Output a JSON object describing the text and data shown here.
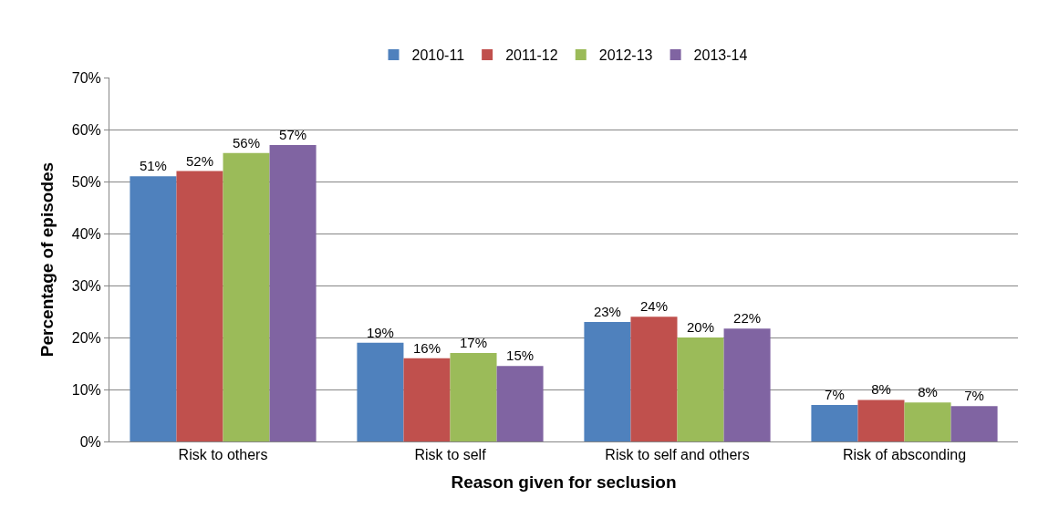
{
  "chart_data": {
    "type": "bar",
    "xlabel": "Reason given for seclusion",
    "ylabel": "Percentage of episodes",
    "categories": [
      "Risk to others",
      "Risk to self",
      "Risk to self and others",
      "Risk of absconding"
    ],
    "series": [
      {
        "name": "2010-11",
        "color": "#4f81bd",
        "values": [
          51,
          19,
          23,
          7
        ],
        "value_labels": [
          "51%",
          "19%",
          "23%",
          "7%"
        ]
      },
      {
        "name": "2011-12",
        "color": "#c0504d",
        "values": [
          52,
          16,
          24,
          8
        ],
        "value_labels": [
          "52%",
          "16%",
          "24%",
          "8%"
        ]
      },
      {
        "name": "2012-13",
        "color": "#9bbb59",
        "values": [
          55.5,
          17,
          20,
          7.5
        ],
        "value_labels": [
          "56%",
          "17%",
          "20%",
          "8%"
        ]
      },
      {
        "name": "2013-14",
        "color": "#8064a2",
        "values": [
          57,
          14.5,
          21.7,
          6.8
        ],
        "value_labels": [
          "57%",
          "15%",
          "22%",
          "7%"
        ]
      }
    ],
    "ylim": [
      0,
      70
    ],
    "yticks": [
      {
        "value": 0,
        "label": "0%"
      },
      {
        "value": 10,
        "label": "10%"
      },
      {
        "value": 20,
        "label": "20%"
      },
      {
        "value": 30,
        "label": "30%"
      },
      {
        "value": 40,
        "label": "40%"
      },
      {
        "value": 50,
        "label": "50%"
      },
      {
        "value": 60,
        "label": "60%"
      },
      {
        "value": 70,
        "label": "70%"
      }
    ],
    "grid": "y",
    "legend": "top"
  }
}
